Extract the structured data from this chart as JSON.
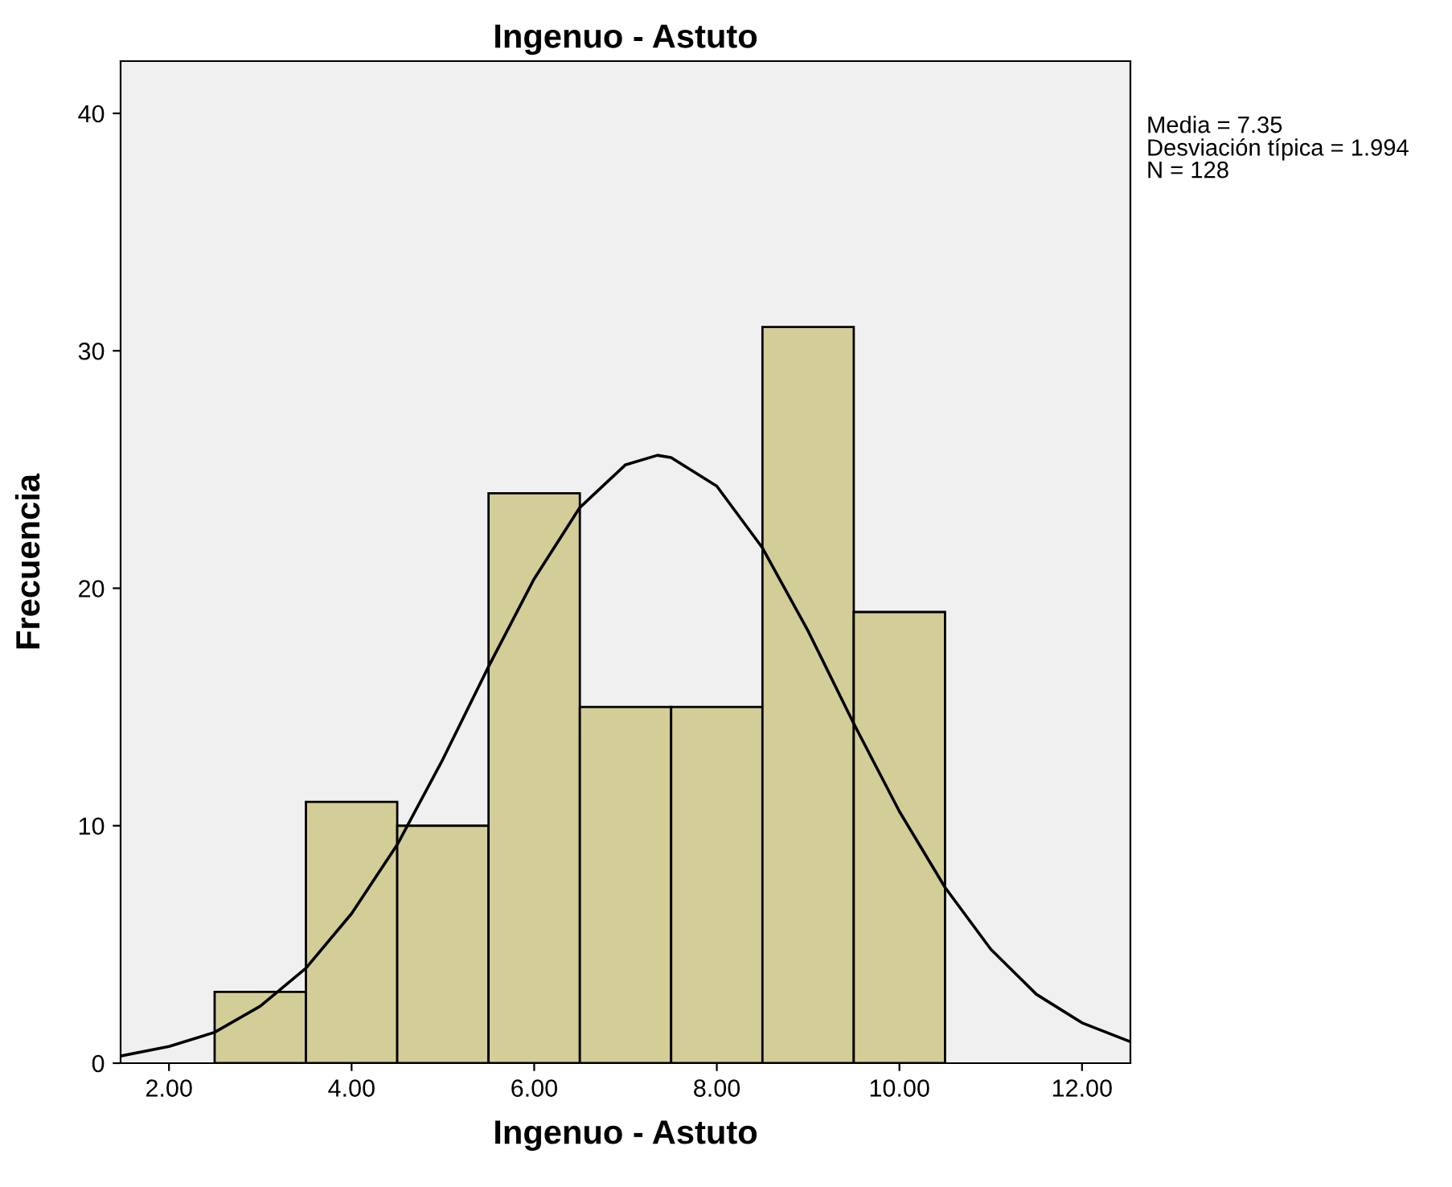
{
  "chart_data": {
    "type": "histogram",
    "title": "Ingenuo - Astuto",
    "xlabel": "Ingenuo - Astuto",
    "ylabel": "Frecuencia",
    "bins": [
      2.5,
      3.5,
      4.5,
      5.5,
      6.5,
      7.5,
      8.5,
      9.5,
      10.5
    ],
    "values": [
      3,
      11,
      10,
      24,
      15,
      15,
      31,
      19
    ],
    "color": "#d3ce97",
    "series": [
      {
        "type": "line",
        "color": "#000000",
        "x": [
          1.47,
          2,
          2.5,
          3,
          3.5,
          4,
          4.5,
          5,
          5.5,
          6,
          6.5,
          7,
          7.35,
          7.5,
          8,
          8.5,
          9,
          9.5,
          10,
          10.5,
          11,
          11.5,
          12,
          12.53
        ],
        "values": [
          0.3,
          0.7,
          1.3,
          2.4,
          4.0,
          6.3,
          9.2,
          12.8,
          16.7,
          20.4,
          23.4,
          25.2,
          25.6,
          25.5,
          24.3,
          21.7,
          18.2,
          14.3,
          10.6,
          7.4,
          4.8,
          2.9,
          1.7,
          0.9
        ]
      }
    ],
    "xlim": [
      1.47,
      12.53
    ],
    "ylim": [
      0,
      42.2
    ],
    "xticks": [
      {
        "value": 2,
        "label": "2.00"
      },
      {
        "value": 4,
        "label": "4.00"
      },
      {
        "value": 6,
        "label": "6.00"
      },
      {
        "value": 8,
        "label": "8.00"
      },
      {
        "value": 10,
        "label": "10.00"
      },
      {
        "value": 12,
        "label": "12.00"
      }
    ],
    "yticks": [
      0,
      10,
      20,
      30,
      40
    ],
    "annotations": [
      "Media = 7.35",
      "Desviación típica = 1.994",
      "N = 128"
    ]
  }
}
